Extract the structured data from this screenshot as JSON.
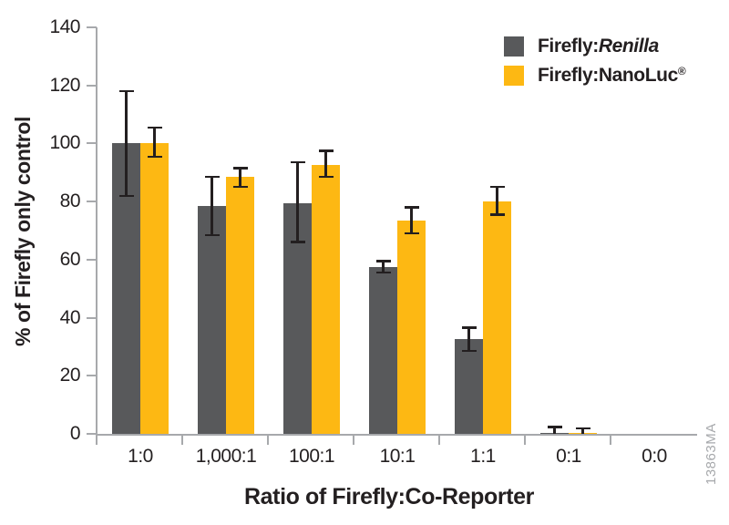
{
  "figure": {
    "watermark": "13863MA",
    "colors": {
      "axis": "#a7a9ac",
      "error_bar": "#231f20",
      "text": "#231f20",
      "watermark": "#a7a9ac",
      "background": "#ffffff"
    }
  },
  "chart_data": {
    "type": "bar",
    "title": "",
    "xlabel": "Ratio of Firefly:Co-Reporter",
    "ylabel": "% of Firefly only control",
    "ylim": [
      0,
      140
    ],
    "yticks": [
      0,
      20,
      40,
      60,
      80,
      100,
      120,
      140
    ],
    "grid": false,
    "legend_position": "top-right",
    "error_bars": true,
    "categories": [
      "1:0",
      "1,000:1",
      "100:1",
      "10:1",
      "1:1",
      "0:1",
      "0:0"
    ],
    "series": [
      {
        "name": "Firefly:Renilla",
        "name_parts": {
          "prefix": "Firefly:",
          "italic": "Renilla",
          "sup": ""
        },
        "color": "#58595b",
        "values": [
          100,
          78.5,
          79.5,
          57.5,
          32.5,
          0.3,
          0
        ],
        "error_low": [
          82,
          68.5,
          66,
          55.5,
          28.5,
          0,
          0
        ],
        "error_high": [
          118,
          88.5,
          93.5,
          59.5,
          36.5,
          2.3,
          0
        ]
      },
      {
        "name": "Firefly:NanoLuc®",
        "name_parts": {
          "prefix": "Firefly:NanoLuc",
          "italic": "",
          "sup": "®"
        },
        "color": "#fdb813",
        "values": [
          100,
          88.5,
          92.5,
          73.5,
          80,
          0.3,
          0
        ],
        "error_low": [
          95.5,
          85,
          88.5,
          69,
          75.5,
          0,
          0
        ],
        "error_high": [
          105.5,
          91.5,
          97.5,
          78,
          85,
          1.9,
          0
        ]
      }
    ]
  }
}
